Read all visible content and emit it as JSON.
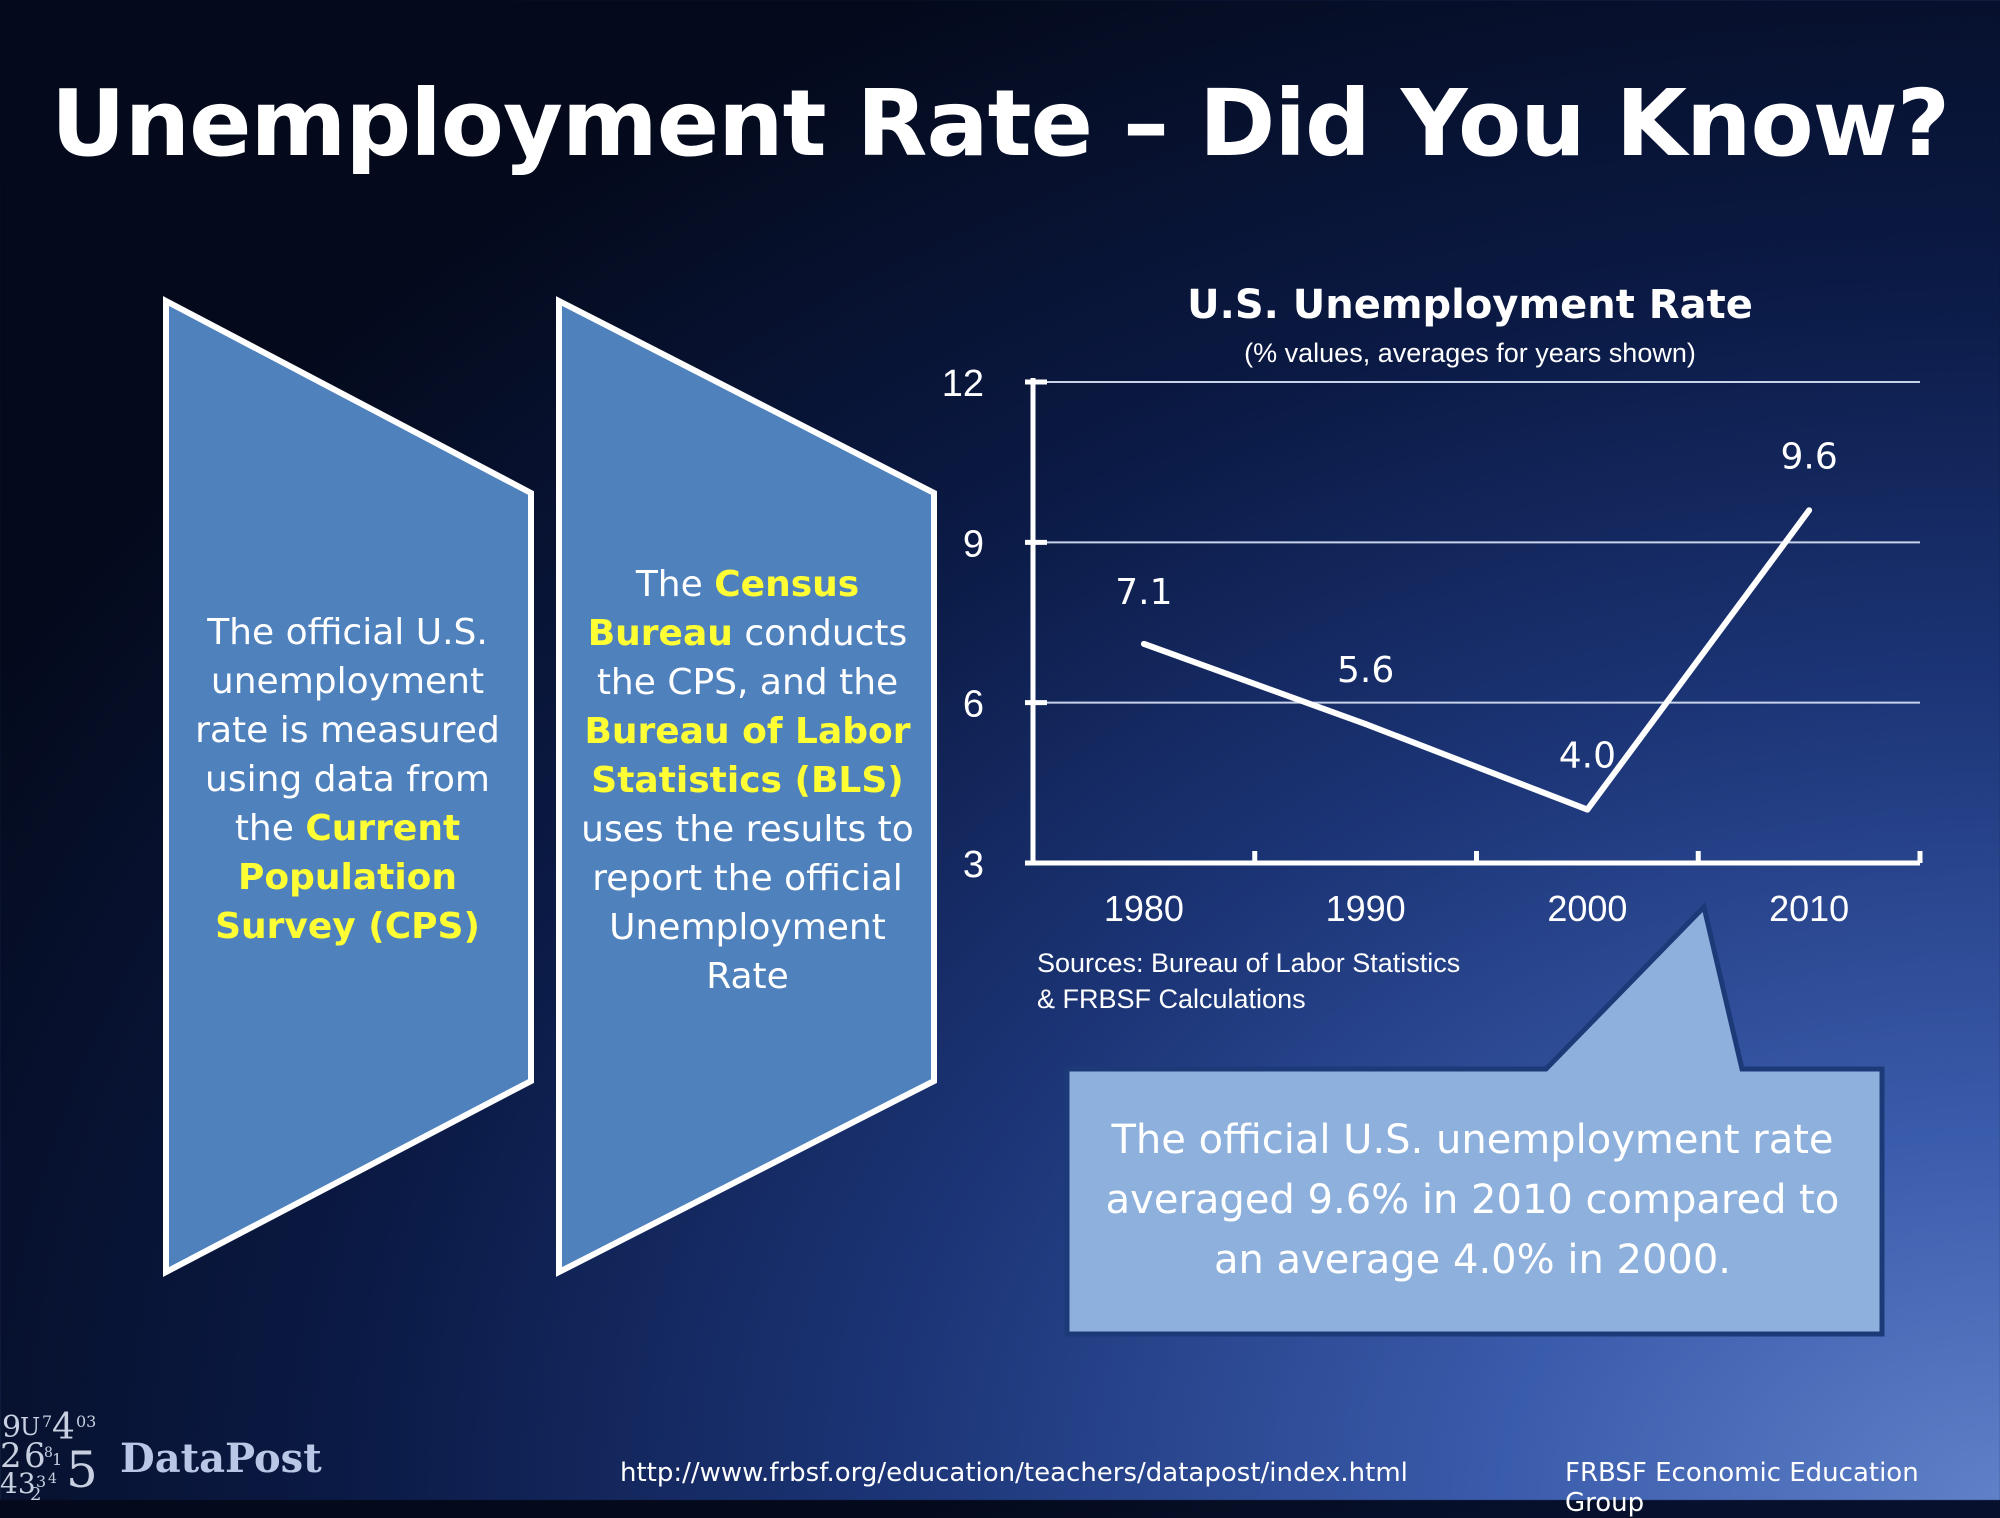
{
  "slide": {
    "title": "Unemployment Rate – Did You Know?"
  },
  "box1": {
    "text": "The official U.S. unemployment rate is measured using data from the",
    "highlight": "Current Population Survey (CPS)"
  },
  "box2": {
    "part1": "The",
    "highlight1": "Census Bureau",
    "part2": "conducts the CPS, and the",
    "highlight2": "Bureau of Labor Statistics (BLS)",
    "part3": "uses the results to report the official Unemployment Rate"
  },
  "chart_data": {
    "type": "line",
    "title": "U.S. Unemployment Rate",
    "subtitle": "(% values, averages for years shown)",
    "categories": [
      "1980",
      "1990",
      "2000",
      "2010"
    ],
    "series": [
      {
        "values": [
          7.1,
          5.6,
          4.0,
          9.6
        ]
      }
    ],
    "data_labels": [
      "7.1",
      "5.6",
      "4.0",
      "9.6"
    ],
    "yticks": [
      "12",
      "9",
      "6",
      "3"
    ],
    "ylim": [
      3,
      12
    ],
    "grid": true,
    "xlabel": "",
    "ylabel": ""
  },
  "sources": {
    "line1": "Sources: Bureau of Labor Statistics",
    "line2": "& FRBSF Calculations"
  },
  "callout": {
    "text": "The official U.S. unemployment rate averaged 9.6% in 2010 compared to an average 4.0% in 2000."
  },
  "logo": {
    "name": "DataPost"
  },
  "footer": {
    "url": "http://www.frbsf.org/education/teachers/datapost/index.html",
    "org": "FRBSF Economic Education Group"
  },
  "colors": {
    "box_fill": "#4f81bd",
    "callout_fill": "#8eb0dc",
    "highlight": "#ffff33"
  }
}
